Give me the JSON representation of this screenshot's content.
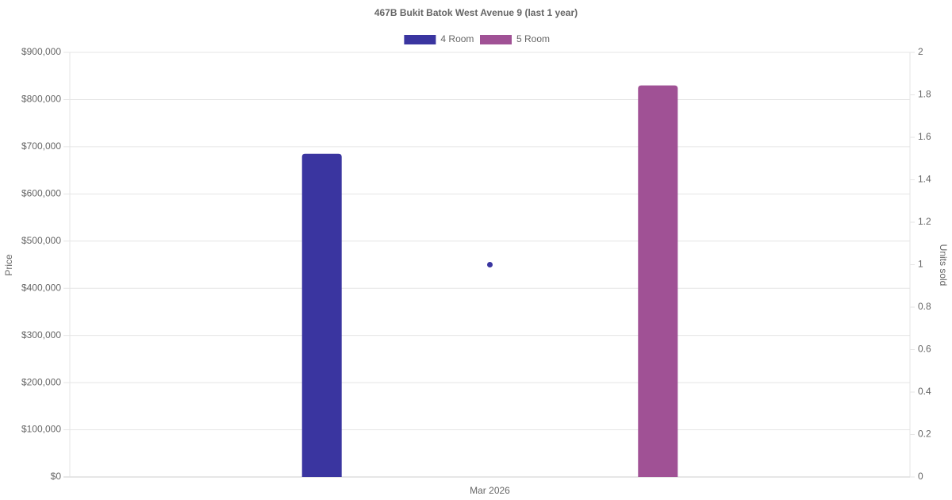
{
  "chart_data": {
    "type": "bar",
    "title": "467B Bukit Batok West Avenue 9 (last 1 year)",
    "categories": [
      "Mar 2026"
    ],
    "series": [
      {
        "name": "4 Room",
        "color": "#3a35a0",
        "type": "bar",
        "values": [
          685000
        ]
      },
      {
        "name": "5 Room",
        "color": "#a05195",
        "type": "bar",
        "values": [
          830000
        ]
      },
      {
        "color": "#3a35a0",
        "type": "line",
        "axis": "y2",
        "values": [
          1
        ]
      }
    ],
    "ylabel": "Price",
    "y2label": "Units sold",
    "ylim": [
      0,
      900000
    ],
    "yticks": [
      {
        "value": 0,
        "label": "$0"
      },
      {
        "value": 100000,
        "label": "$100,000"
      },
      {
        "value": 200000,
        "label": "$200,000"
      },
      {
        "value": 300000,
        "label": "$300,000"
      },
      {
        "value": 400000,
        "label": "$400,000"
      },
      {
        "value": 500000,
        "label": "$500,000"
      },
      {
        "value": 600000,
        "label": "$600,000"
      },
      {
        "value": 700000,
        "label": "$700,000"
      },
      {
        "value": 800000,
        "label": "$800,000"
      },
      {
        "value": 900000,
        "label": "$900,000"
      }
    ],
    "y2lim": [
      0,
      2
    ],
    "y2ticks": [
      0,
      0.2,
      0.4,
      0.6,
      0.8,
      1,
      1.2,
      1.4,
      1.6,
      1.8,
      2
    ],
    "grid": true,
    "legend": "top"
  }
}
